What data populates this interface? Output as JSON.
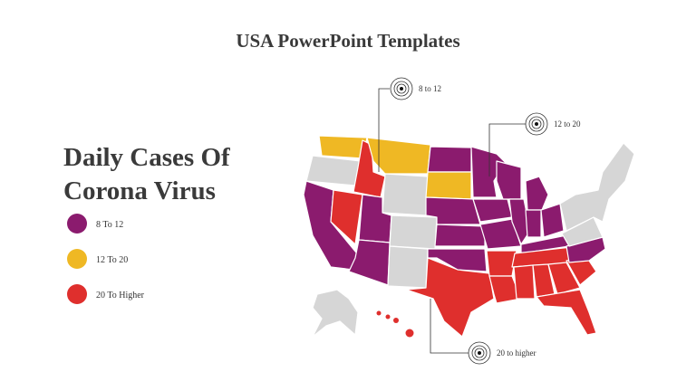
{
  "header": {
    "title": "USA PowerPoint Templates"
  },
  "heading": {
    "lines": [
      "Daily Cases Of",
      "Corona Virus"
    ]
  },
  "legend": [
    {
      "label": "8 To 12",
      "color": "#8b1b6e"
    },
    {
      "label": "12 To 20",
      "color": "#efb824"
    },
    {
      "label": "20 To Higher",
      "color": "#df2f2d"
    }
  ],
  "callouts": [
    {
      "label": "8 to 12"
    },
    {
      "label": "12  to 20"
    },
    {
      "label": "20 to higher"
    }
  ]
}
